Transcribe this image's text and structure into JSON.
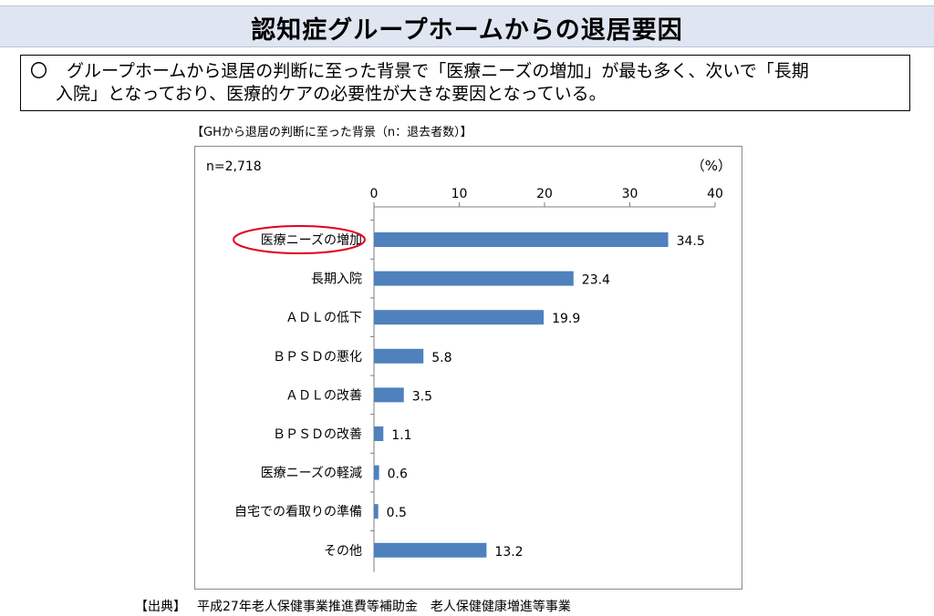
{
  "header": {
    "title": "認知症グループホームからの退居要因"
  },
  "summary": {
    "bullet": "〇",
    "text_line1": "グループホームから退居の判断に至った背景で「医療ニーズの増加」が最も多く、次いで「長期",
    "text_line2": "入院」となっており、医療的ケアの必要性が大きな要因となっている。"
  },
  "chart_caption": "【GHから退居の判断に至った背景（n：退去者数）】",
  "chart_data": {
    "type": "bar",
    "orientation": "horizontal",
    "n_label": "n=2,718",
    "unit_label": "（%）",
    "xlim": [
      0,
      40
    ],
    "ticks": [
      0,
      10,
      20,
      30,
      40
    ],
    "grid": false,
    "bar_color": "#4f81bd",
    "highlight_color": "#e0001a",
    "highlighted_category": "医療ニーズの増加",
    "categories": [
      "医療ニーズの増加",
      "長期入院",
      "ＡＤＬの低下",
      "ＢＰＳＤの悪化",
      "ＡＤＬの改善",
      "ＢＰＳＤの改善",
      "医療ニーズの軽減",
      "自宅での看取りの準備",
      "その他"
    ],
    "values": [
      34.5,
      23.4,
      19.9,
      5.8,
      3.5,
      1.1,
      0.6,
      0.5,
      13.2
    ],
    "value_labels": [
      "34.5",
      "23.4",
      "19.9",
      "5.8",
      "3.5",
      "1.1",
      "0.6",
      "0.5",
      "13.2"
    ]
  },
  "footer": {
    "source_label": "【出典】",
    "source_text": "平成27年老人保健事業推進費等補助金　老人保健健康増進等事業"
  }
}
